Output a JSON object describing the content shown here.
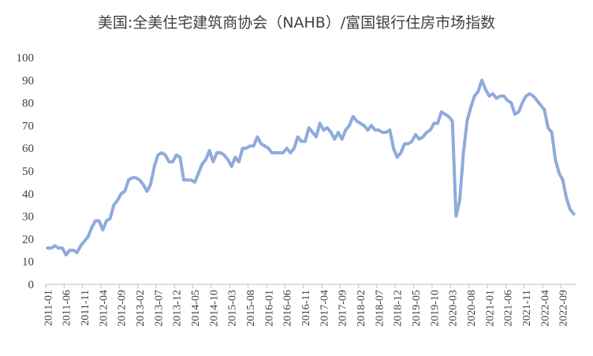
{
  "chart_data": {
    "type": "line",
    "title": "美国:全美住宅建筑商协会（NAHB）/富国银行住房市场指数",
    "ylim": [
      0,
      100
    ],
    "yticks": [
      0,
      10,
      20,
      30,
      40,
      50,
      60,
      70,
      80,
      90,
      100
    ],
    "xlabels": [
      "2011-01",
      "2011-06",
      "2011-11",
      "2012-04",
      "2012-09",
      "2013-02",
      "2013-07",
      "2013-12",
      "2014-05",
      "2014-10",
      "2015-03",
      "2015-08",
      "2016-01",
      "2016-06",
      "2016-11",
      "2017-04",
      "2017-09",
      "2018-02",
      "2018-07",
      "2018-12",
      "2019-05",
      "2019-10",
      "2020-03",
      "2020-08",
      "2021-01",
      "2021-06",
      "2021-11",
      "2022-04",
      "2022-09"
    ],
    "grid": false,
    "legend": "none",
    "line_color": "#8faadc",
    "x": [
      "2011-01",
      "2011-02",
      "2011-03",
      "2011-04",
      "2011-05",
      "2011-06",
      "2011-07",
      "2011-08",
      "2011-09",
      "2011-10",
      "2011-11",
      "2011-12",
      "2012-01",
      "2012-02",
      "2012-03",
      "2012-04",
      "2012-05",
      "2012-06",
      "2012-07",
      "2012-08",
      "2012-09",
      "2012-10",
      "2012-11",
      "2012-12",
      "2013-01",
      "2013-02",
      "2013-03",
      "2013-04",
      "2013-05",
      "2013-06",
      "2013-07",
      "2013-08",
      "2013-09",
      "2013-10",
      "2013-11",
      "2013-12",
      "2014-01",
      "2014-02",
      "2014-03",
      "2014-04",
      "2014-05",
      "2014-06",
      "2014-07",
      "2014-08",
      "2014-09",
      "2014-10",
      "2014-11",
      "2014-12",
      "2015-01",
      "2015-02",
      "2015-03",
      "2015-04",
      "2015-05",
      "2015-06",
      "2015-07",
      "2015-08",
      "2015-09",
      "2015-10",
      "2015-11",
      "2015-12",
      "2016-01",
      "2016-02",
      "2016-03",
      "2016-04",
      "2016-05",
      "2016-06",
      "2016-07",
      "2016-08",
      "2016-09",
      "2016-10",
      "2016-11",
      "2016-12",
      "2017-01",
      "2017-02",
      "2017-03",
      "2017-04",
      "2017-05",
      "2017-06",
      "2017-07",
      "2017-08",
      "2017-09",
      "2017-10",
      "2017-11",
      "2017-12",
      "2018-01",
      "2018-02",
      "2018-03",
      "2018-04",
      "2018-05",
      "2018-06",
      "2018-07",
      "2018-08",
      "2018-09",
      "2018-10",
      "2018-11",
      "2018-12",
      "2019-01",
      "2019-02",
      "2019-03",
      "2019-04",
      "2019-05",
      "2019-06",
      "2019-07",
      "2019-08",
      "2019-09",
      "2019-10",
      "2019-11",
      "2019-12",
      "2020-01",
      "2020-02",
      "2020-03",
      "2020-04",
      "2020-05",
      "2020-06",
      "2020-07",
      "2020-08",
      "2020-09",
      "2020-10",
      "2020-11",
      "2020-12",
      "2021-01",
      "2021-02",
      "2021-03",
      "2021-04",
      "2021-05",
      "2021-06",
      "2021-07",
      "2021-08",
      "2021-09",
      "2021-10",
      "2021-11",
      "2021-12",
      "2022-01",
      "2022-02",
      "2022-03",
      "2022-04",
      "2022-05",
      "2022-06",
      "2022-07",
      "2022-08",
      "2022-09",
      "2022-10",
      "2022-11",
      "2022-12"
    ],
    "values": [
      16,
      16,
      17,
      16,
      16,
      13,
      15,
      15,
      14,
      17,
      19,
      21,
      25,
      28,
      28,
      24,
      28,
      29,
      35,
      37,
      40,
      41,
      46,
      47,
      47,
      46,
      44,
      41,
      44,
      52,
      57,
      58,
      57,
      54,
      54,
      57,
      56,
      46,
      46,
      46,
      45,
      49,
      53,
      55,
      59,
      54,
      58,
      58,
      57,
      55,
      52,
      56,
      54,
      60,
      60,
      61,
      61,
      65,
      62,
      61,
      60,
      58,
      58,
      58,
      58,
      60,
      58,
      60,
      65,
      63,
      63,
      69,
      67,
      65,
      71,
      68,
      69,
      67,
      64,
      67,
      64,
      68,
      70,
      74,
      72,
      71,
      70,
      68,
      70,
      68,
      68,
      67,
      67,
      68,
      60,
      56,
      58,
      62,
      62,
      63,
      66,
      64,
      65,
      67,
      68,
      71,
      71,
      76,
      75,
      74,
      72,
      30,
      37,
      58,
      72,
      78,
      83,
      85,
      90,
      86,
      83,
      84,
      82,
      83,
      83,
      81,
      80,
      75,
      76,
      80,
      83,
      84,
      83,
      81,
      79,
      77,
      69,
      67,
      55,
      49,
      46,
      38,
      33,
      31
    ]
  }
}
